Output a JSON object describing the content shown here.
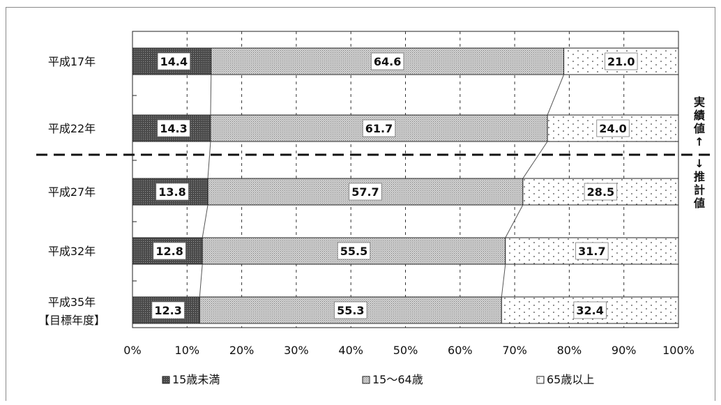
{
  "chart_data": {
    "type": "bar",
    "orientation": "horizontal",
    "stacked": true,
    "percent_stacked": true,
    "categories": [
      "平成17年",
      "平成22年",
      "平成27年",
      "平成32年",
      "平成35年\n【目標年度】"
    ],
    "series": [
      {
        "name": "15歳未満",
        "values": [
          14.4,
          14.3,
          13.8,
          12.8,
          12.3
        ],
        "color": "#5a5a5a"
      },
      {
        "name": "15～64歳",
        "values": [
          64.6,
          61.7,
          57.7,
          55.5,
          55.3
        ],
        "color": "#c8c8c8"
      },
      {
        "name": "65歳以上",
        "values": [
          21.0,
          24.0,
          28.5,
          31.7,
          32.4
        ],
        "color": "#ffffff"
      }
    ],
    "xlim": [
      0,
      100
    ],
    "xticks": [
      "0%",
      "10%",
      "20%",
      "30%",
      "40%",
      "50%",
      "60%",
      "70%",
      "80%",
      "90%",
      "100%"
    ],
    "grid": true,
    "legend_position": "bottom",
    "annotations": {
      "actual_label": "実績値↑",
      "estimate_label": "↓推計値"
    }
  },
  "colors": {
    "under15": "#5a5a5a",
    "working": "#c8c8c8",
    "elderly": "#ffffff",
    "axis": "#222222",
    "grid": "#333333"
  }
}
